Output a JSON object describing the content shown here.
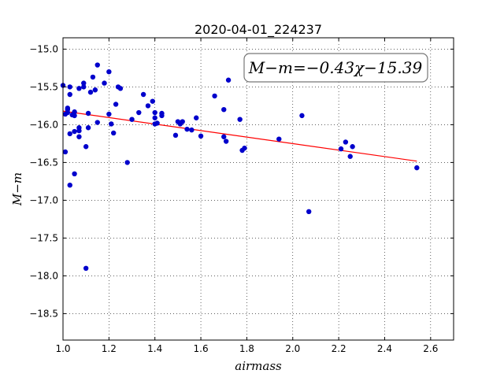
{
  "chart_data": {
    "type": "scatter",
    "title": "2020-04-01_224237",
    "xlabel": "airmass",
    "ylabel": "M−m",
    "xlim": [
      1.0,
      2.7
    ],
    "ylim": [
      -18.85,
      -14.85
    ],
    "x_ticks": [
      "1.0",
      "1.2",
      "1.4",
      "1.6",
      "1.8",
      "2.0",
      "2.2",
      "2.4",
      "2.6"
    ],
    "y_ticks": [
      "−15.0",
      "−15.5",
      "−16.0",
      "−16.5",
      "−17.0",
      "−17.5",
      "−18.0",
      "−18.5"
    ],
    "x_tick_values": [
      1.0,
      1.2,
      1.4,
      1.6,
      1.8,
      2.0,
      2.2,
      2.4,
      2.6
    ],
    "y_tick_values": [
      -15.0,
      -15.5,
      -16.0,
      -16.5,
      -17.0,
      -17.5,
      -18.0,
      -18.5
    ],
    "grid": true,
    "annotation": "M−m=−0.43χ−15.39",
    "fit": {
      "slope": -0.43,
      "intercept": -15.39,
      "x_range": [
        1.0,
        2.54
      ],
      "color": "#ff0000"
    },
    "points_color": "#0000cc",
    "points": [
      [
        1.0,
        -15.48
      ],
      [
        1.01,
        -15.86
      ],
      [
        1.01,
        -16.36
      ],
      [
        1.02,
        -15.8
      ],
      [
        1.02,
        -15.84
      ],
      [
        1.03,
        -15.5
      ],
      [
        1.03,
        -16.8
      ],
      [
        1.03,
        -16.12
      ],
      [
        1.02,
        -15.78
      ],
      [
        1.03,
        -15.6
      ],
      [
        1.04,
        -15.87
      ],
      [
        1.05,
        -15.83
      ],
      [
        1.05,
        -15.88
      ],
      [
        1.05,
        -16.09
      ],
      [
        1.05,
        -16.65
      ],
      [
        1.07,
        -15.52
      ],
      [
        1.07,
        -16.04
      ],
      [
        1.07,
        -16.08
      ],
      [
        1.07,
        -16.16
      ],
      [
        1.09,
        -15.45
      ],
      [
        1.09,
        -15.5
      ],
      [
        1.1,
        -16.29
      ],
      [
        1.1,
        -17.9
      ],
      [
        1.11,
        -15.85
      ],
      [
        1.11,
        -16.04
      ],
      [
        1.12,
        -15.57
      ],
      [
        1.13,
        -15.37
      ],
      [
        1.14,
        -15.54
      ],
      [
        1.15,
        -15.21
      ],
      [
        1.15,
        -15.97
      ],
      [
        1.18,
        -15.45
      ],
      [
        1.2,
        -15.3
      ],
      [
        1.2,
        -15.86
      ],
      [
        1.21,
        -15.99
      ],
      [
        1.22,
        -16.11
      ],
      [
        1.23,
        -15.73
      ],
      [
        1.24,
        -15.5
      ],
      [
        1.25,
        -15.52
      ],
      [
        1.28,
        -16.5
      ],
      [
        1.3,
        -15.93
      ],
      [
        1.33,
        -15.84
      ],
      [
        1.35,
        -15.6
      ],
      [
        1.37,
        -15.75
      ],
      [
        1.39,
        -15.69
      ],
      [
        1.4,
        -15.84
      ],
      [
        1.4,
        -15.91
      ],
      [
        1.4,
        -15.99
      ],
      [
        1.41,
        -15.98
      ],
      [
        1.43,
        -15.85
      ],
      [
        1.43,
        -15.88
      ],
      [
        1.49,
        -16.14
      ],
      [
        1.5,
        -15.96
      ],
      [
        1.51,
        -15.99
      ],
      [
        1.52,
        -15.96
      ],
      [
        1.54,
        -16.06
      ],
      [
        1.56,
        -16.07
      ],
      [
        1.58,
        -15.91
      ],
      [
        1.6,
        -16.15
      ],
      [
        1.66,
        -15.62
      ],
      [
        1.7,
        -15.8
      ],
      [
        1.7,
        -16.16
      ],
      [
        1.71,
        -16.22
      ],
      [
        1.72,
        -15.41
      ],
      [
        1.77,
        -15.93
      ],
      [
        1.78,
        -16.34
      ],
      [
        1.79,
        -16.31
      ],
      [
        1.94,
        -16.19
      ],
      [
        2.04,
        -15.88
      ],
      [
        2.07,
        -17.15
      ],
      [
        2.21,
        -16.32
      ],
      [
        2.23,
        -16.23
      ],
      [
        2.25,
        -16.42
      ],
      [
        2.26,
        -16.29
      ],
      [
        2.54,
        -16.57
      ]
    ]
  }
}
